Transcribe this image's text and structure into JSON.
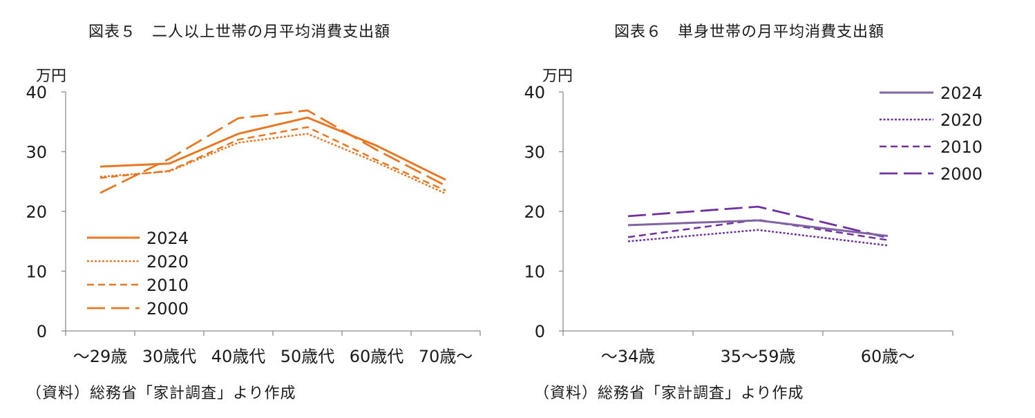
{
  "chart_data": [
    {
      "type": "line",
      "title": "図表５　二人以上世帯の月平均消費支出額",
      "ylabel": "万円",
      "xlabel": "",
      "categories": [
        "〜29歳",
        "30歳代",
        "40歳代",
        "50歳代",
        "60歳代",
        "70歳〜"
      ],
      "ylim": [
        0,
        40
      ],
      "yticks": [
        0,
        10,
        20,
        30,
        40
      ],
      "grid": false,
      "legend": "bottom-left",
      "series": [
        {
          "name": "2024",
          "values": [
            27.5,
            28.0,
            33.0,
            35.7,
            31.0,
            25.3
          ],
          "style": "solid",
          "color": "#E87722"
        },
        {
          "name": "2020",
          "values": [
            25.8,
            26.7,
            31.5,
            33.0,
            28.2,
            23.0
          ],
          "style": "dotted",
          "color": "#E87722"
        },
        {
          "name": "2010",
          "values": [
            25.6,
            26.8,
            32.0,
            34.1,
            28.6,
            23.5
          ],
          "style": "dashed",
          "color": "#E87722"
        },
        {
          "name": "2000",
          "values": [
            23.1,
            28.8,
            35.6,
            36.9,
            30.3,
            24.3
          ],
          "style": "longdash",
          "color": "#E87722"
        }
      ],
      "source": "（資料）総務省「家計調査」より作成"
    },
    {
      "type": "line",
      "title": "図表６　単身世帯の月平均消費支出額",
      "ylabel": "万円",
      "xlabel": "",
      "categories": [
        "〜34歳",
        "35〜59歳",
        "60歳〜"
      ],
      "ylim": [
        0,
        40
      ],
      "yticks": [
        0,
        10,
        20,
        30,
        40
      ],
      "grid": false,
      "legend": "top-right",
      "series": [
        {
          "name": "2024",
          "values": [
            17.7,
            18.5,
            15.9
          ],
          "style": "solid",
          "color": "#8064A2"
        },
        {
          "name": "2020",
          "values": [
            15.0,
            16.9,
            14.3
          ],
          "style": "dotted",
          "color": "#7030A0"
        },
        {
          "name": "2010",
          "values": [
            15.7,
            18.6,
            15.2
          ],
          "style": "dashed",
          "color": "#7030A0"
        },
        {
          "name": "2000",
          "values": [
            19.2,
            20.8,
            15.6
          ],
          "style": "longdash",
          "color": "#7030A0"
        }
      ],
      "source": "（資料）総務省「家計調査」より作成"
    }
  ]
}
